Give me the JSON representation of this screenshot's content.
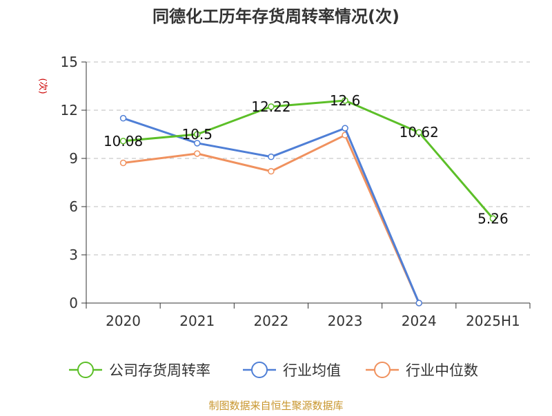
{
  "chart_data": {
    "type": "line",
    "title": "同德化工历年存货周转率情况(次)",
    "unit": "(次)",
    "categories": [
      "2020",
      "2021",
      "2022",
      "2023",
      "2024",
      "2025H1"
    ],
    "ylim": [
      0,
      15
    ],
    "yticks": [
      "0",
      "3",
      "6",
      "9",
      "12",
      "15"
    ],
    "grid": "horizontal-dashed",
    "legend_position": "bottom",
    "series": [
      {
        "name": "公司存货周转率",
        "color": "#5cbf28",
        "values": [
          10.08,
          10.5,
          12.22,
          12.6,
          10.62,
          5.26
        ],
        "labels": [
          "10.08",
          "10.5",
          "12.22",
          "12.6",
          "10.62",
          "5.26"
        ]
      },
      {
        "name": "行业均值",
        "color": "#4f7fd6",
        "values": [
          11.5,
          9.95,
          9.1,
          10.88,
          0,
          null
        ]
      },
      {
        "name": "行业中位数",
        "color": "#f0915e",
        "values": [
          8.72,
          9.3,
          8.2,
          10.45,
          0,
          null
        ]
      }
    ]
  },
  "source": "制图数据来自恒生聚源数据库"
}
